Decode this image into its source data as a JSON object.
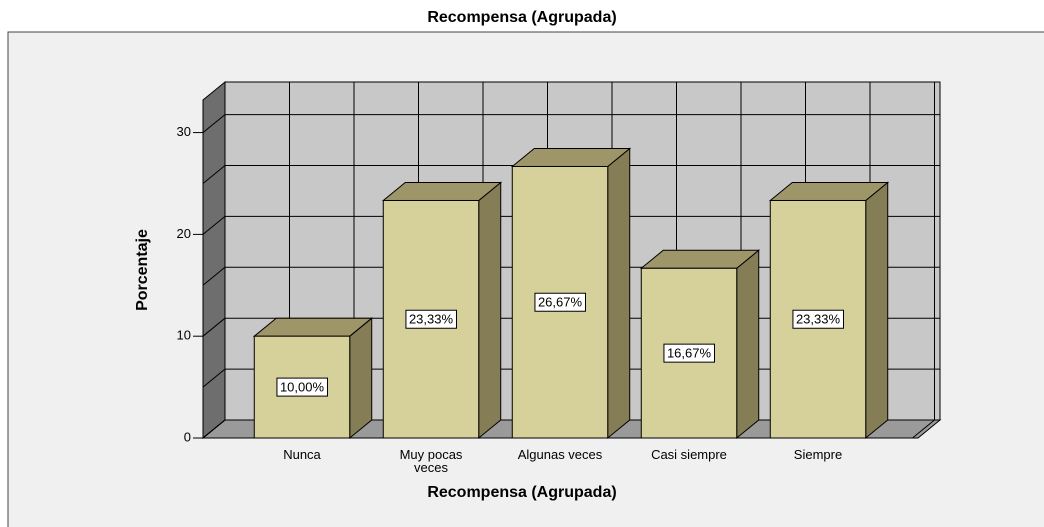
{
  "chart_data": {
    "type": "bar3d",
    "title": "Recompensa (Agrupada)",
    "x_label": "Recompensa (Agrupada)",
    "y_label": "Porcentaje",
    "categories": [
      "Nunca",
      "Muy pocas veces",
      "Algunas veces",
      "Casi siempre",
      "Siempre"
    ],
    "values": [
      10,
      23.33,
      26.67,
      16.67,
      23.33
    ],
    "value_labels": [
      "10,00%",
      "23,33%",
      "26,67%",
      "16,67%",
      "23,33%"
    ],
    "color": "#d6d09a",
    "ylim": [
      0,
      33.2
    ],
    "yticks": [
      0,
      10,
      20,
      30
    ],
    "yticks_minor": [
      5,
      15,
      25
    ],
    "grid": true
  }
}
